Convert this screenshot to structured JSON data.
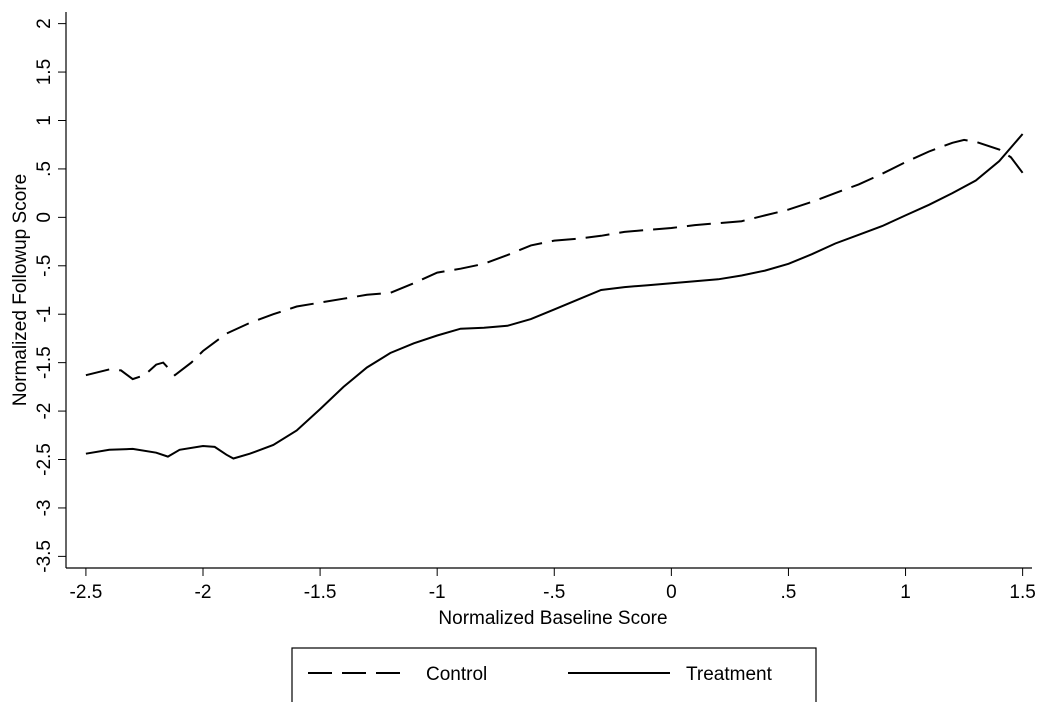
{
  "chart_data": {
    "type": "line",
    "x_label": "Normalized Baseline Score",
    "y_label": "Normalized Followup Score",
    "xlim": [
      -2.585,
      1.54
    ],
    "ylim": [
      -3.62,
      2.12
    ],
    "xticks": [
      -2.5,
      -2,
      -1.5,
      -1,
      {
        "value": -0.5,
        "label": "-.5"
      },
      0,
      {
        "value": 0.5,
        "label": ".5"
      },
      1,
      1.5
    ],
    "yticks": [
      -3.5,
      -3,
      -2.5,
      -2,
      -1.5,
      -1,
      {
        "value": -0.5,
        "label": "-.5"
      },
      0,
      {
        "value": 0.5,
        "label": ".5"
      },
      1,
      1.5,
      2
    ],
    "grid": false,
    "legend": "bottom",
    "series": [
      {
        "name": "Control",
        "color": "#000000",
        "dash": "dashed",
        "x": [
          -2.5,
          -2.4,
          -2.35,
          -2.3,
          -2.25,
          -2.2,
          -2.17,
          -2.12,
          -2.05,
          -2.0,
          -1.9,
          -1.8,
          -1.7,
          -1.6,
          -1.5,
          -1.4,
          -1.3,
          -1.2,
          -1.1,
          -1.0,
          -0.9,
          -0.8,
          -0.7,
          -0.6,
          -0.5,
          -0.4,
          -0.3,
          -0.2,
          -0.1,
          0,
          0.1,
          0.2,
          0.3,
          0.4,
          0.5,
          0.6,
          0.7,
          0.8,
          0.9,
          1.0,
          1.1,
          1.2,
          1.25,
          1.3,
          1.4,
          1.45,
          1.5
        ],
        "values": [
          -1.63,
          -1.57,
          -1.58,
          -1.67,
          -1.63,
          -1.52,
          -1.5,
          -1.63,
          -1.5,
          -1.38,
          -1.2,
          -1.09,
          -1.0,
          -0.92,
          -0.88,
          -0.84,
          -0.8,
          -0.78,
          -0.68,
          -0.57,
          -0.53,
          -0.48,
          -0.39,
          -0.29,
          -0.24,
          -0.22,
          -0.19,
          -0.15,
          -0.13,
          -0.11,
          -0.08,
          -0.06,
          -0.04,
          0.02,
          0.08,
          0.16,
          0.25,
          0.34,
          0.45,
          0.57,
          0.68,
          0.77,
          0.8,
          0.78,
          0.7,
          0.62,
          0.46
        ]
      },
      {
        "name": "Treatment",
        "color": "#000000",
        "dash": "solid",
        "x": [
          -2.5,
          -2.4,
          -2.3,
          -2.2,
          -2.15,
          -2.1,
          -2.0,
          -1.95,
          -1.9,
          -1.87,
          -1.8,
          -1.7,
          -1.6,
          -1.5,
          -1.4,
          -1.3,
          -1.2,
          -1.1,
          -1.0,
          -0.9,
          -0.8,
          -0.7,
          -0.6,
          -0.5,
          -0.4,
          -0.3,
          -0.2,
          -0.1,
          0,
          0.1,
          0.2,
          0.3,
          0.4,
          0.5,
          0.6,
          0.7,
          0.8,
          0.9,
          1.0,
          1.1,
          1.2,
          1.3,
          1.4,
          1.5
        ],
        "values": [
          -2.44,
          -2.4,
          -2.39,
          -2.43,
          -2.47,
          -2.4,
          -2.36,
          -2.37,
          -2.45,
          -2.49,
          -2.44,
          -2.35,
          -2.2,
          -1.98,
          -1.75,
          -1.55,
          -1.4,
          -1.3,
          -1.22,
          -1.15,
          -1.14,
          -1.12,
          -1.05,
          -0.95,
          -0.85,
          -0.75,
          -0.72,
          -0.7,
          -0.68,
          -0.66,
          -0.64,
          -0.6,
          -0.55,
          -0.48,
          -0.38,
          -0.27,
          -0.18,
          -0.09,
          0.02,
          0.13,
          0.25,
          0.38,
          0.58,
          0.86
        ]
      }
    ]
  }
}
